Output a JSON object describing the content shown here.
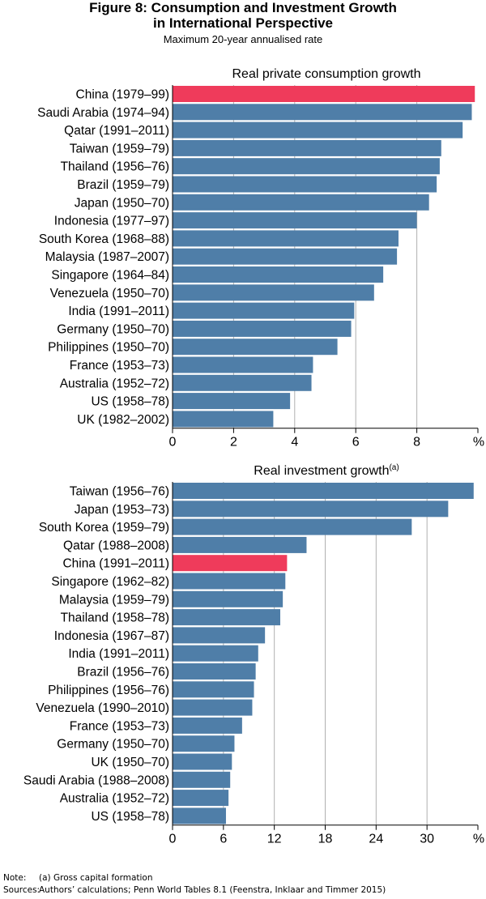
{
  "title_line1": "Figure 8: Consumption and Investment Growth",
  "title_line2": "in International Perspective",
  "subtitle": "Maximum 20-year annualised rate",
  "colors": {
    "bar": "#4f7ea8",
    "highlight": "#ef3b5b",
    "grid": "#b0b0b0"
  },
  "chart_data": [
    {
      "type": "bar",
      "orientation": "horizontal",
      "title": "Real private consumption growth",
      "title_sup": "",
      "unit": "%",
      "xlim": [
        0,
        10
      ],
      "xticks": [
        0,
        2,
        4,
        6,
        8
      ],
      "highlight": "China (1979–99)",
      "categories": [
        "China (1979–99)",
        "Saudi Arabia (1974–94)",
        "Qatar (1991–2011)",
        "Taiwan (1959–79)",
        "Thailand (1956–76)",
        "Brazil (1959–79)",
        "Japan (1950–70)",
        "Indonesia (1977–97)",
        "South Korea (1968–88)",
        "Malaysia (1987–2007)",
        "Singapore (1964–84)",
        "Venezuela (1950–70)",
        "India (1991–2011)",
        "Germany (1950–70)",
        "Philippines (1950–70)",
        "France (1953–73)",
        "Australia (1952–72)",
        "US (1958–78)",
        "UK (1982–2002)"
      ],
      "values": [
        9.9,
        9.8,
        9.5,
        8.8,
        8.75,
        8.65,
        8.4,
        8.0,
        7.4,
        7.35,
        6.9,
        6.6,
        5.95,
        5.85,
        5.4,
        4.6,
        4.55,
        3.85,
        3.3
      ]
    },
    {
      "type": "bar",
      "orientation": "horizontal",
      "title": "Real investment growth",
      "title_sup": "(a)",
      "unit": "%",
      "xlim": [
        0,
        36
      ],
      "xticks": [
        0,
        6,
        12,
        18,
        24,
        30
      ],
      "highlight": "China (1991–2011)",
      "categories": [
        "Taiwan (1956–76)",
        "Japan (1953–73)",
        "South Korea (1959–79)",
        "Qatar (1988–2008)",
        "China (1991–2011)",
        "Singapore (1962–82)",
        "Malaysia (1959–79)",
        "Thailand (1958–78)",
        "Indonesia (1967–87)",
        "India (1991–2011)",
        "Brazil (1956–76)",
        "Philippines (1956–76)",
        "Venezuela (1990–2010)",
        "France (1953–73)",
        "Germany (1950–70)",
        "UK (1950–70)",
        "Saudi Arabia (1988–2008)",
        "Australia (1952–72)",
        "US (1958–78)"
      ],
      "values": [
        35.5,
        32.5,
        28.2,
        15.8,
        13.5,
        13.3,
        13.0,
        12.7,
        10.9,
        10.1,
        9.8,
        9.6,
        9.4,
        8.2,
        7.3,
        7.0,
        6.8,
        6.6,
        6.3
      ]
    }
  ],
  "footnotes": [
    {
      "label": "Note:",
      "text": "(a) Gross capital formation"
    },
    {
      "label": "Sources:",
      "text": "Authors’ calculations; Penn World Tables 8.1 (Feenstra, Inklaar and Timmer 2015)"
    }
  ]
}
